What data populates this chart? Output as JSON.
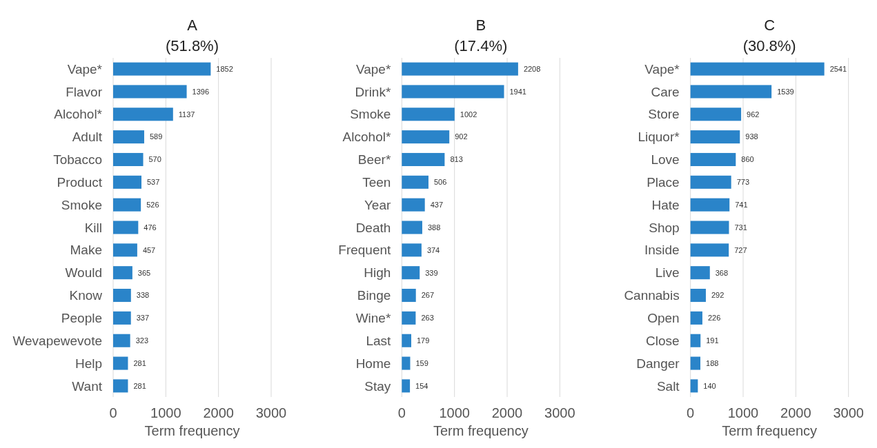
{
  "chart_data": [
    {
      "type": "bar",
      "orientation": "horizontal",
      "title": "A",
      "subtitle": "(51.8%)",
      "xlabel": "Term frequency",
      "categories": [
        "Vape*",
        "Flavor",
        "Alcohol*",
        "Adult",
        "Tobacco",
        "Product",
        "Smoke",
        "Kill",
        "Make",
        "Would",
        "Know",
        "People",
        "Wevapewevote",
        "Help",
        "Want"
      ],
      "values": [
        1852,
        1396,
        1137,
        589,
        570,
        537,
        526,
        476,
        457,
        365,
        338,
        337,
        323,
        281,
        281
      ],
      "color": "#2a84c9",
      "xlim": [
        0,
        3000
      ],
      "xticks": [
        0,
        1000,
        2000,
        3000
      ],
      "grid": "x",
      "data_labels": true
    },
    {
      "type": "bar",
      "orientation": "horizontal",
      "title": "B",
      "subtitle": "(17.4%)",
      "xlabel": "Term frequency",
      "categories": [
        "Vape*",
        "Drink*",
        "Smoke",
        "Alcohol*",
        "Beer*",
        "Teen",
        "Year",
        "Death",
        "Frequent",
        "High",
        "Binge",
        "Wine*",
        "Last",
        "Home",
        "Stay"
      ],
      "values": [
        2208,
        1941,
        1002,
        902,
        813,
        506,
        437,
        388,
        374,
        339,
        267,
        263,
        179,
        159,
        154
      ],
      "color": "#2a84c9",
      "xlim": [
        0,
        3000
      ],
      "xticks": [
        0,
        1000,
        2000,
        3000
      ],
      "grid": "x",
      "data_labels": true
    },
    {
      "type": "bar",
      "orientation": "horizontal",
      "title": "C",
      "subtitle": "(30.8%)",
      "xlabel": "Term frequency",
      "categories": [
        "Vape*",
        "Care",
        "Store",
        "Liquor*",
        "Love",
        "Place",
        "Hate",
        "Shop",
        "Inside",
        "Live",
        "Cannabis",
        "Open",
        "Close",
        "Danger",
        "Salt"
      ],
      "values": [
        2541,
        1539,
        962,
        938,
        860,
        773,
        741,
        731,
        727,
        368,
        292,
        226,
        191,
        188,
        140
      ],
      "color": "#2a84c9",
      "xlim": [
        0,
        3000
      ],
      "xticks": [
        0,
        1000,
        2000,
        3000
      ],
      "grid": "x",
      "data_labels": true
    }
  ]
}
